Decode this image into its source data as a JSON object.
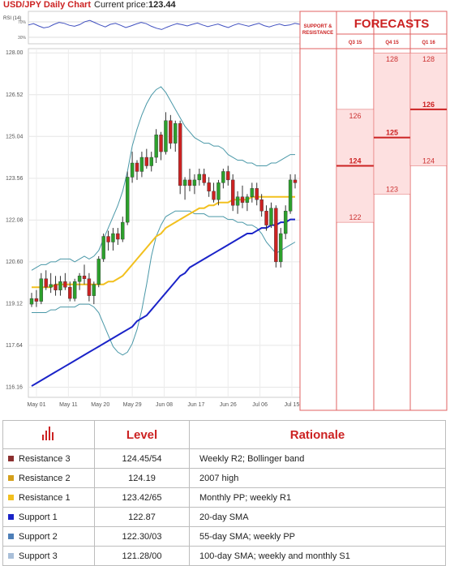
{
  "header": {
    "title": "USD/JPY Daily Chart",
    "price_label": "Current price:",
    "price_value": "123.44"
  },
  "rsi": {
    "label": "RSI (14)",
    "ticks": [
      "70%",
      "30%"
    ],
    "values": [
      58,
      62,
      55,
      49,
      52,
      60,
      66,
      63,
      57,
      54,
      59,
      68,
      72,
      65,
      58,
      52,
      60,
      63,
      57,
      50,
      55,
      61,
      66,
      62,
      54,
      48,
      44,
      51,
      57,
      62,
      59,
      55,
      60,
      64,
      58,
      53,
      57,
      61,
      55,
      50,
      57,
      62,
      58,
      54,
      59,
      63,
      56,
      52,
      57,
      61,
      56,
      58,
      63,
      60
    ]
  },
  "forecasts": {
    "title": "FORECASTS",
    "sr_label": [
      "SUPPORT &",
      "RESISTANCE"
    ],
    "columns": [
      {
        "label": "Q3 15",
        "high": "126",
        "avg": "124",
        "low": "122"
      },
      {
        "label": "Q4 15",
        "high": "128",
        "avg": "125",
        "low": "123"
      },
      {
        "label": "Q1 16",
        "high": "128",
        "avg": "126",
        "low": "124"
      }
    ]
  },
  "chart_data": {
    "type": "candlestick",
    "title": "USD/JPY Daily Chart",
    "y_ticks": [
      128.0,
      126.52,
      125.04,
      123.56,
      122.08,
      120.6,
      119.12,
      117.64,
      116.16
    ],
    "y_tick_labels": [
      "128.00",
      "126.52",
      "125.04",
      "123.56",
      "122.08",
      "120.60",
      "119.12",
      "117.64",
      "116.16"
    ],
    "ylim": [
      115.8,
      128.15
    ],
    "x_labels": [
      "May 01",
      "May 11",
      "May 20",
      "May 29",
      "Jun 08",
      "Jun 17",
      "Jun 26",
      "Jul 06",
      "Jul 15"
    ],
    "grid": true,
    "candles": [
      [
        119.1,
        119.5,
        119.0,
        119.3
      ],
      [
        119.3,
        119.6,
        119.0,
        119.2
      ],
      [
        119.2,
        120.2,
        119.1,
        120.0
      ],
      [
        120.0,
        120.3,
        119.6,
        119.7
      ],
      [
        119.7,
        120.2,
        119.5,
        119.8
      ],
      [
        119.8,
        120.1,
        119.4,
        119.6
      ],
      [
        119.6,
        120.1,
        119.4,
        119.9
      ],
      [
        119.9,
        120.2,
        119.6,
        119.7
      ],
      [
        119.7,
        119.9,
        119.2,
        119.3
      ],
      [
        119.3,
        120.0,
        119.2,
        119.9
      ],
      [
        119.9,
        120.2,
        119.6,
        120.1
      ],
      [
        120.1,
        120.5,
        119.8,
        120.0
      ],
      [
        120.0,
        120.2,
        119.2,
        119.4
      ],
      [
        119.4,
        119.9,
        119.1,
        119.8
      ],
      [
        119.8,
        120.8,
        119.7,
        120.7
      ],
      [
        120.7,
        121.6,
        120.6,
        121.5
      ],
      [
        121.5,
        121.7,
        121.0,
        121.3
      ],
      [
        121.3,
        121.8,
        121.0,
        121.6
      ],
      [
        121.6,
        121.8,
        121.2,
        121.4
      ],
      [
        121.4,
        122.2,
        121.3,
        122.0
      ],
      [
        122.0,
        123.8,
        121.9,
        123.6
      ],
      [
        123.6,
        124.5,
        123.4,
        124.1
      ],
      [
        124.1,
        124.2,
        123.5,
        123.8
      ],
      [
        123.8,
        124.5,
        123.6,
        124.3
      ],
      [
        124.3,
        124.6,
        123.9,
        124.0
      ],
      [
        124.0,
        124.5,
        123.8,
        124.3
      ],
      [
        124.3,
        125.3,
        124.1,
        125.1
      ],
      [
        125.1,
        125.2,
        124.2,
        124.5
      ],
      [
        124.5,
        125.9,
        124.4,
        125.6
      ],
      [
        125.6,
        125.8,
        124.6,
        124.8
      ],
      [
        124.8,
        125.6,
        124.5,
        125.5
      ],
      [
        125.5,
        125.6,
        123.0,
        123.3
      ],
      [
        123.3,
        123.6,
        122.8,
        123.5
      ],
      [
        123.5,
        123.9,
        123.1,
        123.3
      ],
      [
        123.3,
        123.7,
        123.0,
        123.5
      ],
      [
        123.5,
        123.9,
        123.3,
        123.7
      ],
      [
        123.7,
        123.9,
        123.3,
        123.4
      ],
      [
        123.4,
        123.6,
        122.9,
        123.1
      ],
      [
        123.1,
        123.4,
        122.7,
        122.8
      ],
      [
        122.8,
        123.5,
        122.6,
        123.4
      ],
      [
        123.4,
        123.9,
        123.2,
        123.8
      ],
      [
        123.8,
        124.0,
        123.3,
        123.5
      ],
      [
        123.5,
        123.7,
        122.4,
        122.6
      ],
      [
        122.6,
        123.1,
        122.3,
        122.9
      ],
      [
        122.9,
        123.3,
        122.5,
        122.7
      ],
      [
        122.7,
        123.0,
        122.4,
        122.9
      ],
      [
        122.9,
        123.4,
        122.7,
        123.2
      ],
      [
        123.2,
        123.4,
        122.6,
        122.8
      ],
      [
        122.8,
        123.0,
        122.2,
        122.4
      ],
      [
        122.4,
        122.6,
        121.7,
        121.9
      ],
      [
        121.9,
        122.7,
        121.8,
        122.5
      ],
      [
        122.5,
        122.6,
        120.4,
        120.6
      ],
      [
        120.6,
        121.8,
        120.4,
        121.6
      ],
      [
        121.6,
        122.6,
        121.4,
        122.4
      ],
      [
        122.4,
        123.7,
        122.3,
        123.5
      ],
      [
        123.5,
        123.7,
        123.2,
        123.4
      ]
    ],
    "series": [
      {
        "name": "Bollinger upper",
        "color": "#4a98a8",
        "values": [
          120.3,
          120.4,
          120.5,
          120.5,
          120.6,
          120.6,
          120.7,
          120.7,
          120.7,
          120.6,
          120.7,
          120.8,
          120.7,
          120.8,
          121.0,
          121.4,
          121.8,
          122.2,
          122.6,
          123.1,
          123.8,
          124.7,
          125.3,
          125.8,
          126.2,
          126.5,
          126.7,
          126.8,
          126.6,
          126.3,
          126.0,
          125.7,
          125.4,
          125.2,
          125.0,
          124.9,
          124.8,
          124.8,
          124.7,
          124.7,
          124.6,
          124.4,
          124.3,
          124.2,
          124.2,
          124.1,
          124.1,
          124.0,
          124.0,
          124.0,
          124.1,
          124.1,
          124.2,
          124.3,
          124.4,
          124.4
        ]
      },
      {
        "name": "Bollinger lower",
        "color": "#4a98a8",
        "values": [
          118.8,
          118.8,
          118.8,
          118.8,
          118.9,
          118.9,
          119.0,
          119.0,
          119.0,
          119.0,
          119.1,
          119.1,
          119.1,
          119.0,
          118.8,
          118.4,
          118.0,
          117.6,
          117.4,
          117.3,
          117.4,
          117.7,
          118.2,
          118.9,
          119.8,
          120.8,
          121.5,
          121.9,
          122.2,
          122.3,
          122.4,
          122.4,
          122.4,
          122.4,
          122.3,
          122.3,
          122.3,
          122.2,
          122.2,
          122.2,
          122.2,
          122.1,
          122.1,
          122.0,
          122.0,
          121.9,
          121.9,
          121.8,
          121.6,
          121.3,
          121.1,
          120.9,
          121.0,
          121.1,
          121.2,
          121.3
        ]
      },
      {
        "name": "20-day SMA",
        "color": "#f2c01e",
        "values": [
          119.7,
          119.7,
          119.7,
          119.7,
          119.7,
          119.8,
          119.8,
          119.8,
          119.8,
          119.8,
          119.8,
          119.8,
          119.8,
          119.8,
          119.8,
          119.8,
          119.9,
          119.9,
          120.0,
          120.1,
          120.3,
          120.5,
          120.7,
          120.9,
          121.1,
          121.3,
          121.5,
          121.6,
          121.8,
          121.9,
          122.0,
          122.1,
          122.2,
          122.3,
          122.4,
          122.5,
          122.5,
          122.6,
          122.6,
          122.7,
          122.7,
          122.7,
          122.8,
          122.8,
          122.8,
          122.8,
          122.9,
          122.9,
          122.9,
          122.9,
          122.9,
          122.9,
          122.9,
          122.9,
          122.9,
          122.9
        ]
      },
      {
        "name": "55-day SMA",
        "color": "#1a23c8",
        "values": [
          116.2,
          116.3,
          116.4,
          116.5,
          116.6,
          116.7,
          116.8,
          116.9,
          117.0,
          117.1,
          117.2,
          117.3,
          117.4,
          117.5,
          117.6,
          117.7,
          117.8,
          117.9,
          118.0,
          118.1,
          118.2,
          118.3,
          118.5,
          118.6,
          118.7,
          118.9,
          119.1,
          119.3,
          119.5,
          119.7,
          119.9,
          120.1,
          120.2,
          120.4,
          120.5,
          120.6,
          120.7,
          120.8,
          120.9,
          121.0,
          121.1,
          121.2,
          121.3,
          121.4,
          121.5,
          121.6,
          121.6,
          121.7,
          121.8,
          121.8,
          121.9,
          121.9,
          122.0,
          122.0,
          122.1,
          122.1
        ]
      }
    ],
    "levels": [
      {
        "value": "124.45",
        "color": "#6b1d1d",
        "y": 124.45
      },
      {
        "value": "124.19",
        "color": "#d9a54a",
        "y": 124.19
      },
      {
        "value": "123.42",
        "color": "#e8b41a",
        "y": 123.42
      },
      {
        "value": "122.87",
        "color": "#1a23c8",
        "y": 122.87
      },
      {
        "value": "122.30",
        "color": "#2a6f83",
        "y": 122.3
      },
      {
        "value": "121.28",
        "color": "#9dc3c7",
        "y": 121.28
      }
    ]
  },
  "table": {
    "headers": [
      "Level",
      "Rationale"
    ],
    "rows": [
      {
        "name": "Resistance 3",
        "value": "124.45/54",
        "rationale": "Weekly R2; Bollinger band",
        "color": "#8b2f2f"
      },
      {
        "name": "Resistance 2",
        "value": "124.19",
        "rationale": "2007 high",
        "color": "#d49f1a"
      },
      {
        "name": "Resistance 1",
        "value": "123.42/65",
        "rationale": "Monthly PP; weekly R1",
        "color": "#f2c01e"
      },
      {
        "name": "Support 1",
        "value": "122.87",
        "rationale": "20-day SMA",
        "color": "#1a23c8"
      },
      {
        "name": "Support 2",
        "value": "122.30/03",
        "rationale": "55-day SMA; weekly PP",
        "color": "#4e7fb8"
      },
      {
        "name": "Support 3",
        "value": "121.28/00",
        "rationale": "100-day SMA; weekly and monthly S1",
        "color": "#a9bfd9"
      }
    ]
  }
}
